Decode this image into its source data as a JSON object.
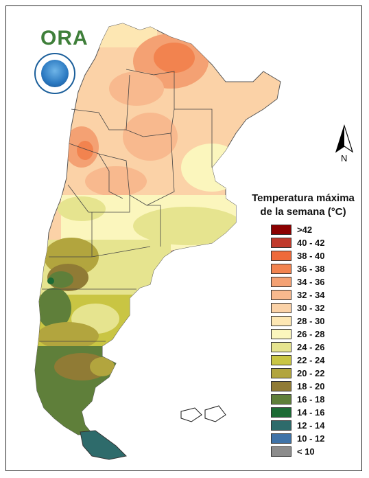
{
  "logo": {
    "text": "ORA"
  },
  "north": {
    "label": "N",
    "icon": "north-arrow-icon"
  },
  "seal": {
    "icon": "meteorological-service-seal-icon"
  },
  "legend": {
    "title_line1": "Temperatura máxima",
    "title_line2": "de la semana (°C)",
    "items": [
      {
        "label": ">42",
        "color": "#8b0000"
      },
      {
        "label": "40 - 42",
        "color": "#c0392b"
      },
      {
        "label": "38 - 40",
        "color": "#ee6a3a"
      },
      {
        "label": "36 - 38",
        "color": "#f2834f"
      },
      {
        "label": "34 - 36",
        "color": "#f4a173"
      },
      {
        "label": "32 - 34",
        "color": "#f8b98e"
      },
      {
        "label": "30 - 32",
        "color": "#fbd2a7"
      },
      {
        "label": "28 - 30",
        "color": "#fde7b3"
      },
      {
        "label": "26 - 28",
        "color": "#fbf6bd"
      },
      {
        "label": "24 - 26",
        "color": "#e6e48f"
      },
      {
        "label": "22 - 24",
        "color": "#c9c543"
      },
      {
        "label": "20 - 22",
        "color": "#b2a53e"
      },
      {
        "label": "18 - 20",
        "color": "#907b35"
      },
      {
        "label": "16 - 18",
        "color": "#5f7f3a"
      },
      {
        "label": "14 - 16",
        "color": "#1d6b35"
      },
      {
        "label": "12 - 14",
        "color": "#2e6b6b"
      },
      {
        "label": "10 - 12",
        "color": "#3f73a8"
      },
      {
        "label": "< 10",
        "color": "#8c8c8c"
      }
    ]
  }
}
